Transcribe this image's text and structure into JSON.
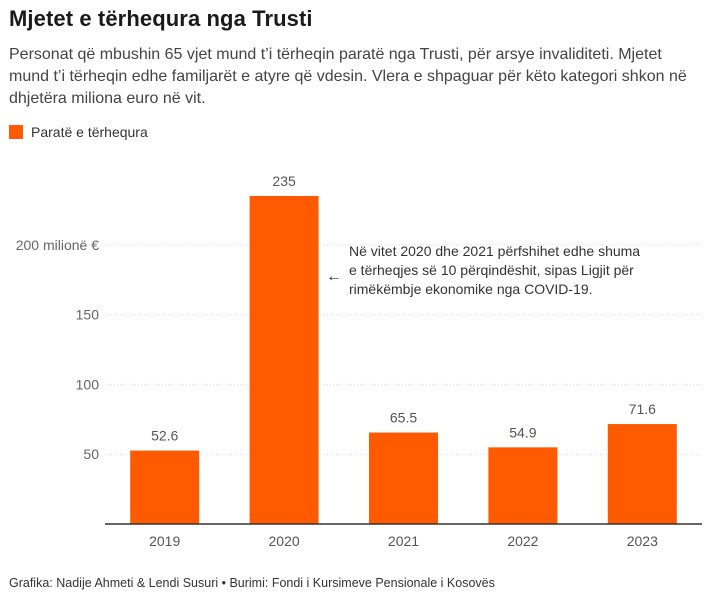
{
  "header": {
    "title": "Mjetet e tërhequra nga Trusti",
    "subtitle": "Personat që mbushin 65 vjet mund t’i tërheqin paratë nga Trusti, për arsye invaliditeti. Mjetet mund t’i tërheqin edhe familjarët e atyre që vdesin. Vlera e shpaguar për këto kategori shkon në dhjetëra miliona euro në vit."
  },
  "legend": {
    "label": "Paratë e tërhequra"
  },
  "annotation": {
    "text": "Në vitet 2020 dhe 2021 përfshihet edhe shuma e tërheqjes së 10 përqindëshit, sipas Ligjit për rimëkëmbje ekonomike nga COVID-19.",
    "arrow": "←"
  },
  "footer": {
    "credit": "Grafika: Nadije Ahmeti & Lendi Susuri • Burimi: Fondi i Kursimeve Pensionale i Kosovës"
  },
  "colors": {
    "bar": "#ff5a00",
    "grid": "#dddddd",
    "axis": "#333333"
  },
  "chart_data": {
    "type": "bar",
    "categories": [
      "2019",
      "2020",
      "2021",
      "2022",
      "2023"
    ],
    "series": [
      {
        "name": "Paratë e tërhequra",
        "values": [
          52.6,
          235,
          65.5,
          54.9,
          71.6
        ],
        "labels": [
          "52.6",
          "235",
          "65.5",
          "54.9",
          "71.6"
        ]
      }
    ],
    "ylim": [
      0,
      250
    ],
    "yticks": [
      50,
      100,
      150,
      200
    ],
    "ytick_labels": [
      "50",
      "100",
      "150",
      "200 milionë €"
    ],
    "grid": true
  }
}
